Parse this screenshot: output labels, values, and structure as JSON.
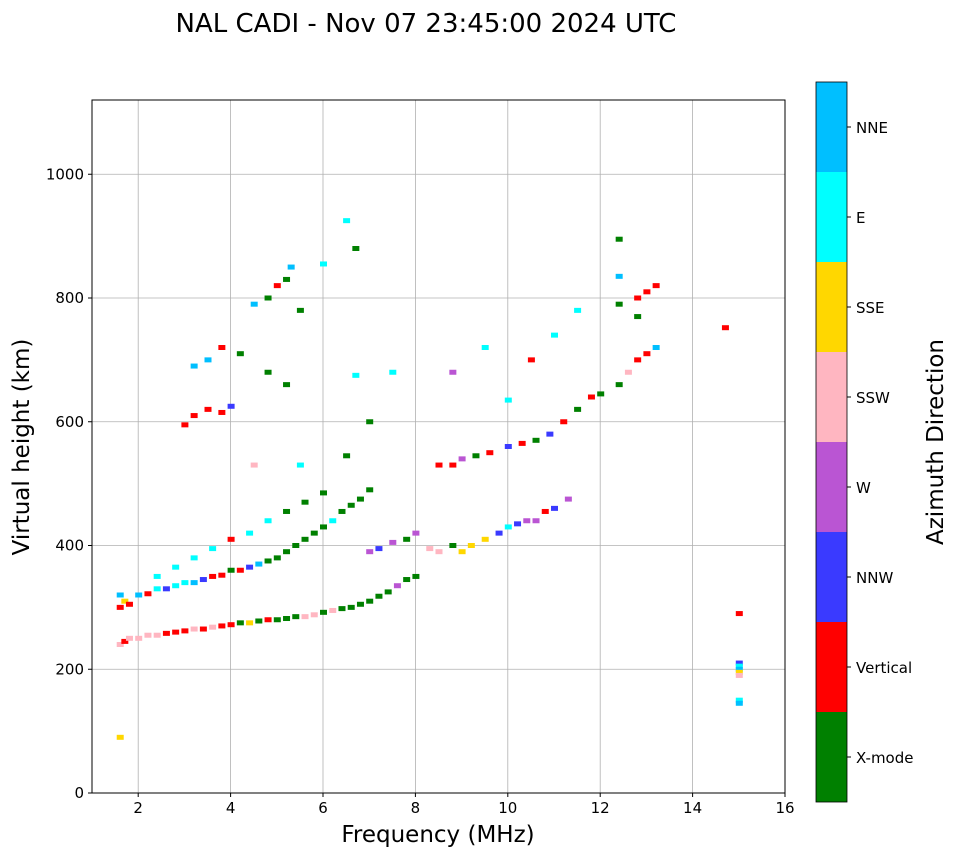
{
  "chart_data": {
    "type": "scatter",
    "title": "NAL CADI - Nov 07 23:45:00 2024 UTC",
    "xlabel": "Frequency (MHz)",
    "ylabel": "Virtual height (km)",
    "xlim": [
      1,
      16
    ],
    "ylim": [
      0,
      1120
    ],
    "xticks": [
      2,
      4,
      6,
      8,
      10,
      12,
      14,
      16
    ],
    "yticks": [
      0,
      200,
      400,
      600,
      800,
      1000
    ],
    "grid": true,
    "colorbar": {
      "label": "Azimuth Direction",
      "categories": [
        "X-mode",
        "Vertical",
        "NNW",
        "W",
        "SSW",
        "SSE",
        "E",
        "NNE"
      ],
      "colors": [
        "#008000",
        "#ff0000",
        "#3a3aff",
        "#ba55d3",
        "#ffb6c1",
        "#ffd700",
        "#00ffff",
        "#00bfff"
      ]
    },
    "points_format": "[frequency_MHz, virtual_height_km, category_index]",
    "points": [
      [
        1.6,
        90,
        5
      ],
      [
        1.6,
        240,
        4
      ],
      [
        1.7,
        245,
        1
      ],
      [
        1.8,
        250,
        4
      ],
      [
        2.0,
        250,
        4
      ],
      [
        2.2,
        255,
        4
      ],
      [
        2.4,
        255,
        4
      ],
      [
        2.6,
        258,
        1
      ],
      [
        2.8,
        260,
        1
      ],
      [
        3.0,
        262,
        1
      ],
      [
        3.2,
        265,
        4
      ],
      [
        3.4,
        265,
        1
      ],
      [
        3.6,
        268,
        4
      ],
      [
        3.8,
        270,
        1
      ],
      [
        4.0,
        272,
        1
      ],
      [
        4.2,
        275,
        0
      ],
      [
        4.4,
        275,
        5
      ],
      [
        4.6,
        278,
        0
      ],
      [
        4.8,
        280,
        1
      ],
      [
        5.0,
        280,
        0
      ],
      [
        5.2,
        282,
        0
      ],
      [
        5.4,
        285,
        0
      ],
      [
        5.6,
        285,
        4
      ],
      [
        5.8,
        288,
        4
      ],
      [
        6.0,
        292,
        0
      ],
      [
        6.2,
        295,
        4
      ],
      [
        6.4,
        298,
        0
      ],
      [
        6.6,
        300,
        0
      ],
      [
        6.8,
        305,
        0
      ],
      [
        7.0,
        310,
        0
      ],
      [
        7.2,
        318,
        0
      ],
      [
        7.4,
        325,
        0
      ],
      [
        7.6,
        335,
        3
      ],
      [
        7.8,
        345,
        0
      ],
      [
        8.0,
        350,
        0
      ],
      [
        1.6,
        300,
        1
      ],
      [
        1.6,
        320,
        7
      ],
      [
        1.7,
        310,
        5
      ],
      [
        1.8,
        305,
        1
      ],
      [
        2.0,
        320,
        7
      ],
      [
        2.2,
        322,
        1
      ],
      [
        2.4,
        330,
        6
      ],
      [
        2.6,
        330,
        2
      ],
      [
        2.8,
        335,
        6
      ],
      [
        3.0,
        340,
        6
      ],
      [
        3.2,
        340,
        7
      ],
      [
        3.4,
        345,
        2
      ],
      [
        3.6,
        350,
        1
      ],
      [
        3.8,
        352,
        1
      ],
      [
        4.0,
        360,
        0
      ],
      [
        4.2,
        360,
        1
      ],
      [
        4.4,
        365,
        2
      ],
      [
        4.6,
        370,
        7
      ],
      [
        4.8,
        375,
        0
      ],
      [
        5.0,
        380,
        0
      ],
      [
        5.2,
        390,
        0
      ],
      [
        5.4,
        400,
        0
      ],
      [
        5.6,
        410,
        0
      ],
      [
        5.8,
        420,
        0
      ],
      [
        6.0,
        430,
        0
      ],
      [
        6.2,
        440,
        6
      ],
      [
        6.4,
        455,
        0
      ],
      [
        6.6,
        465,
        0
      ],
      [
        6.8,
        475,
        0
      ],
      [
        7.0,
        490,
        0
      ],
      [
        2.4,
        350,
        6
      ],
      [
        2.8,
        365,
        6
      ],
      [
        3.2,
        380,
        6
      ],
      [
        3.6,
        395,
        6
      ],
      [
        4.0,
        410,
        1
      ],
      [
        4.4,
        420,
        6
      ],
      [
        4.8,
        440,
        6
      ],
      [
        5.2,
        455,
        0
      ],
      [
        5.6,
        470,
        0
      ],
      [
        6.0,
        485,
        0
      ],
      [
        7.0,
        390,
        3
      ],
      [
        7.2,
        395,
        2
      ],
      [
        7.5,
        405,
        3
      ],
      [
        7.8,
        410,
        0
      ],
      [
        8.0,
        420,
        3
      ],
      [
        8.3,
        395,
        4
      ],
      [
        8.5,
        390,
        4
      ],
      [
        8.8,
        400,
        0
      ],
      [
        9.0,
        390,
        5
      ],
      [
        9.2,
        400,
        5
      ],
      [
        9.5,
        410,
        5
      ],
      [
        9.8,
        420,
        2
      ],
      [
        10.0,
        430,
        6
      ],
      [
        10.2,
        435,
        2
      ],
      [
        10.4,
        440,
        3
      ],
      [
        10.6,
        440,
        3
      ],
      [
        10.8,
        455,
        1
      ],
      [
        11.0,
        460,
        2
      ],
      [
        11.3,
        475,
        3
      ],
      [
        8.5,
        530,
        1
      ],
      [
        8.8,
        530,
        1
      ],
      [
        9.0,
        540,
        3
      ],
      [
        9.3,
        545,
        0
      ],
      [
        9.6,
        550,
        1
      ],
      [
        10.0,
        560,
        2
      ],
      [
        10.3,
        565,
        1
      ],
      [
        10.6,
        570,
        0
      ],
      [
        10.9,
        580,
        2
      ],
      [
        11.2,
        600,
        1
      ],
      [
        11.5,
        620,
        0
      ],
      [
        11.8,
        640,
        1
      ],
      [
        12.0,
        645,
        0
      ],
      [
        12.4,
        660,
        0
      ],
      [
        12.6,
        680,
        4
      ],
      [
        12.8,
        700,
        1
      ],
      [
        13.0,
        710,
        1
      ],
      [
        13.2,
        720,
        7
      ],
      [
        12.4,
        790,
        0
      ],
      [
        12.8,
        800,
        1
      ],
      [
        13.0,
        810,
        1
      ],
      [
        13.2,
        820,
        1
      ],
      [
        12.4,
        835,
        7
      ],
      [
        12.4,
        895,
        0
      ],
      [
        12.8,
        770,
        0
      ],
      [
        11.5,
        780,
        6
      ],
      [
        11.0,
        740,
        6
      ],
      [
        10.5,
        700,
        1
      ],
      [
        9.5,
        720,
        6
      ],
      [
        10.0,
        635,
        6
      ],
      [
        3.0,
        595,
        1
      ],
      [
        3.2,
        610,
        1
      ],
      [
        3.5,
        620,
        1
      ],
      [
        3.8,
        615,
        1
      ],
      [
        4.0,
        625,
        2
      ],
      [
        3.2,
        690,
        7
      ],
      [
        3.5,
        700,
        7
      ],
      [
        3.8,
        720,
        1
      ],
      [
        4.2,
        710,
        0
      ],
      [
        4.5,
        790,
        7
      ],
      [
        4.8,
        800,
        0
      ],
      [
        5.0,
        820,
        1
      ],
      [
        5.2,
        830,
        0
      ],
      [
        5.3,
        850,
        7
      ],
      [
        5.2,
        660,
        0
      ],
      [
        4.8,
        680,
        0
      ],
      [
        5.5,
        780,
        0
      ],
      [
        6.0,
        855,
        6
      ],
      [
        6.5,
        925,
        6
      ],
      [
        6.7,
        880,
        0
      ],
      [
        6.7,
        675,
        6
      ],
      [
        7.5,
        680,
        6
      ],
      [
        8.8,
        680,
        3
      ],
      [
        7.0,
        600,
        0
      ],
      [
        6.5,
        545,
        0
      ],
      [
        5.5,
        530,
        6
      ],
      [
        4.5,
        530,
        4
      ],
      [
        14.7,
        752,
        1
      ],
      [
        15.0,
        290,
        1
      ],
      [
        15.0,
        210,
        2
      ],
      [
        15.0,
        205,
        6
      ],
      [
        15.0,
        200,
        7
      ],
      [
        15.0,
        195,
        5
      ],
      [
        15.0,
        190,
        4
      ],
      [
        15.0,
        150,
        6
      ],
      [
        15.0,
        145,
        7
      ]
    ]
  }
}
